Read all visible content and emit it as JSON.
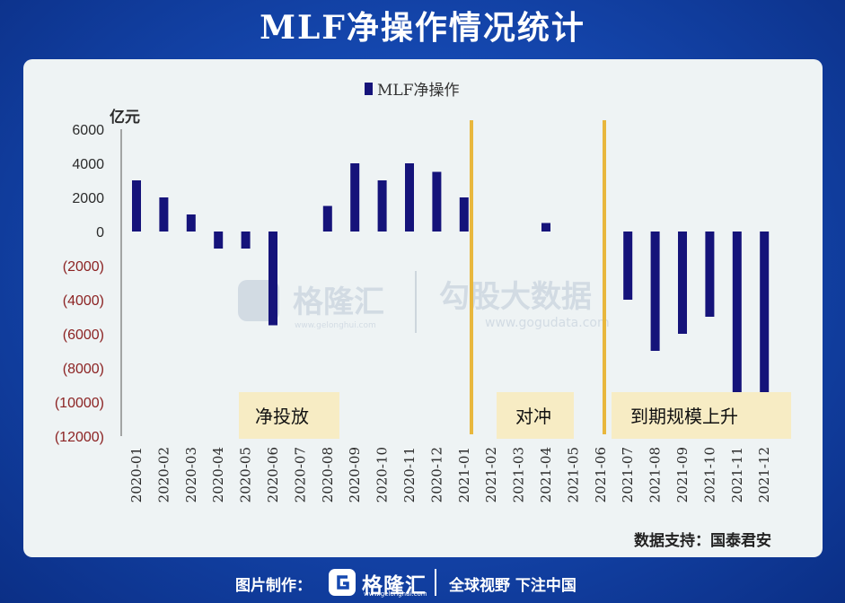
{
  "title": "MLF净操作情况统计",
  "chart_data": {
    "type": "bar",
    "unit_label": "亿元",
    "legend": [
      "MLF净操作"
    ],
    "categories": [
      "2020-01",
      "2020-02",
      "2020-03",
      "2020-04",
      "2020-05",
      "2020-06",
      "2020-07",
      "2020-08",
      "2020-09",
      "2020-10",
      "2020-11",
      "2020-12",
      "2021-01",
      "2021-02",
      "2021-03",
      "2021-04",
      "2021-05",
      "2021-06",
      "2021-07",
      "2021-08",
      "2021-09",
      "2021-10",
      "2021-11",
      "2021-12"
    ],
    "values": [
      3000,
      2000,
      1000,
      -1000,
      -1000,
      -5500,
      0,
      1500,
      4000,
      3000,
      4000,
      3500,
      2000,
      0,
      0,
      500,
      0,
      0,
      -4000,
      -7000,
      -6000,
      -5000,
      -9900,
      -9500
    ],
    "ylim": [
      -12000,
      6000
    ],
    "yticks": [
      "6000",
      "4000",
      "2000",
      "0",
      "(2000)",
      "(4000)",
      "(6000)",
      "(8000)",
      "(10000)",
      "(12000)"
    ],
    "colors": {
      "bar": "#15137a",
      "positive_tick": "#2b2b2b",
      "negative_tick": "#8c2323",
      "divider": "#e8b73d",
      "callout_bg": "#f7ecc4"
    },
    "annotations": [
      "净投放",
      "对冲",
      "到期规模上升"
    ],
    "source": "数据支持：国泰君安"
  },
  "watermarks": {
    "brand_name": "格隆汇",
    "brand_url": "www.gelonghui.com",
    "partner_name": "勾股大数据",
    "partner_url": "www.gogudata.com"
  },
  "footer": {
    "made_by": "图片制作：",
    "logo_name": "格隆汇",
    "logo_url": "www.gelonghui.com",
    "slogan": "全球视野 下注中国"
  }
}
